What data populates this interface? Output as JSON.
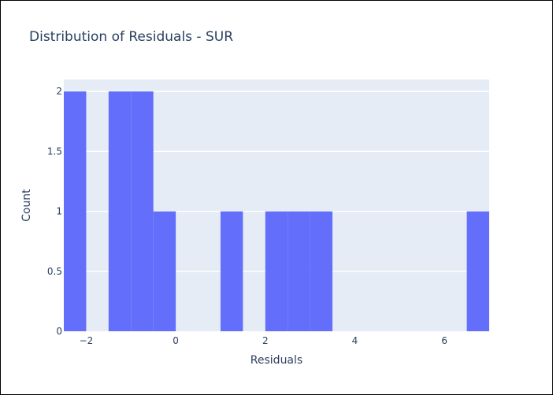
{
  "chart_data": {
    "type": "histogram",
    "title": "Distribution of Residuals - SUR",
    "xlabel": "Residuals",
    "ylabel": "Count",
    "xlim": [
      -2.5,
      7
    ],
    "ylim": [
      0,
      2.1
    ],
    "bin_width": 0.5,
    "bins": [
      {
        "x0": -2.5,
        "x1": -2.0,
        "count": 2
      },
      {
        "x0": -1.5,
        "x1": -1.0,
        "count": 2
      },
      {
        "x0": -1.0,
        "x1": -0.5,
        "count": 2
      },
      {
        "x0": -0.5,
        "x1": 0.0,
        "count": 1
      },
      {
        "x0": 1.0,
        "x1": 1.5,
        "count": 1
      },
      {
        "x0": 2.0,
        "x1": 2.5,
        "count": 1
      },
      {
        "x0": 2.5,
        "x1": 3.0,
        "count": 1
      },
      {
        "x0": 3.0,
        "x1": 3.5,
        "count": 1
      },
      {
        "x0": 6.5,
        "x1": 7.0,
        "count": 1
      }
    ],
    "x_ticks": [
      {
        "value": -2,
        "label": "−2"
      },
      {
        "value": 0,
        "label": "0"
      },
      {
        "value": 2,
        "label": "2"
      },
      {
        "value": 4,
        "label": "4"
      },
      {
        "value": 6,
        "label": "6"
      }
    ],
    "y_ticks": [
      {
        "value": 0,
        "label": "0"
      },
      {
        "value": 0.5,
        "label": "0.5"
      },
      {
        "value": 1,
        "label": "1"
      },
      {
        "value": 1.5,
        "label": "1.5"
      },
      {
        "value": 2,
        "label": "2"
      }
    ],
    "grid": true,
    "colors": {
      "bar": "#636efa",
      "plot_bg": "#e5ecf6",
      "grid": "#ffffff",
      "text": "#2a3f5f"
    }
  }
}
